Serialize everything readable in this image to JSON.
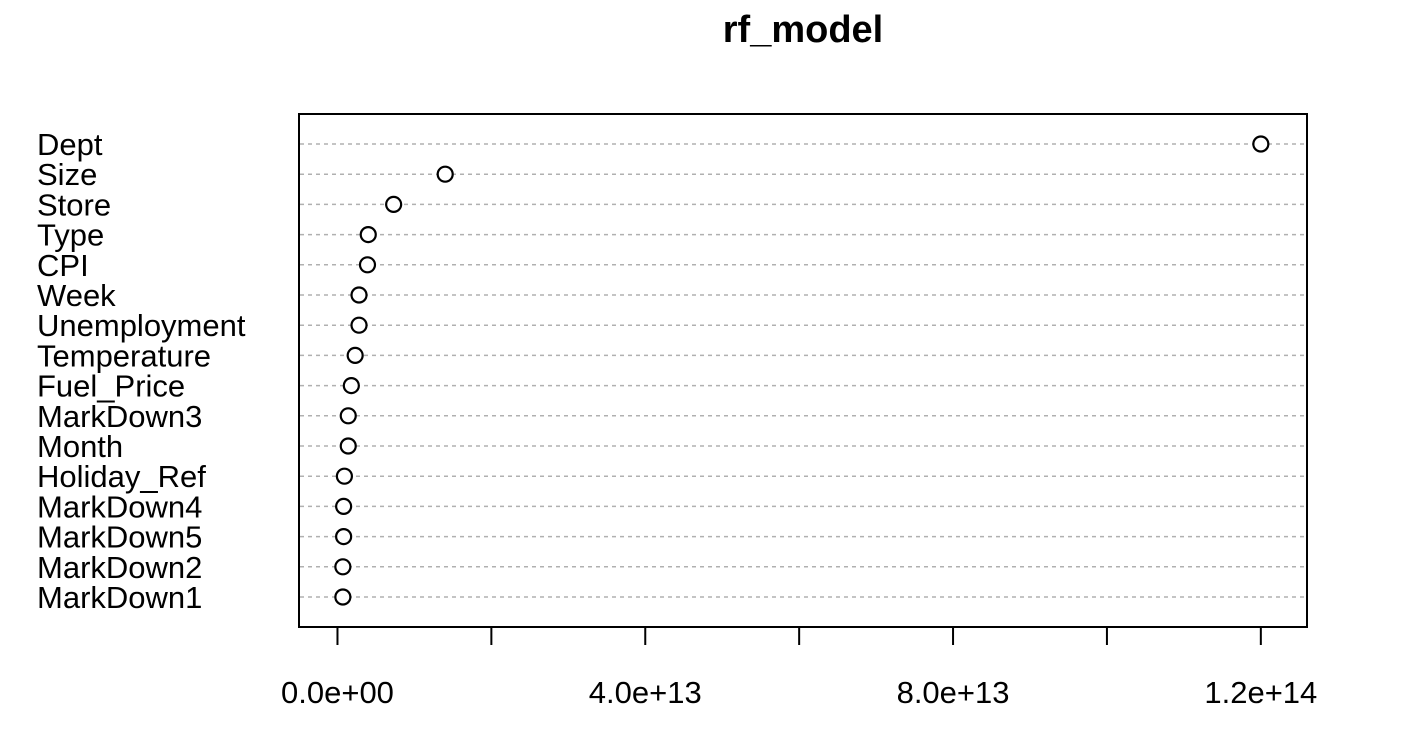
{
  "chart_data": {
    "type": "scatter",
    "title": "rf_model",
    "xlabel": "",
    "ylabel": "",
    "xlim": [
      -5000000000000,
      126000000000000
    ],
    "x_ticks": [
      0,
      20000000000000,
      40000000000000,
      60000000000000,
      80000000000000,
      100000000000000,
      120000000000000
    ],
    "x_tick_labels": [
      "0.0e+00",
      "",
      "4.0e+13",
      "",
      "8.0e+13",
      "",
      "1.2e+14"
    ],
    "grid": "horizontal dashed",
    "marker": "open-circle",
    "categories": [
      "Dept",
      "Size",
      "Store",
      "Type",
      "CPI",
      "Week",
      "Unemployment",
      "Temperature",
      "Fuel_Price",
      "MarkDown3",
      "Month",
      "Holiday_Ref",
      "MarkDown4",
      "MarkDown5",
      "MarkDown2",
      "MarkDown1"
    ],
    "values": [
      120000000000000,
      14000000000000,
      7300000000000,
      4000000000000,
      3900000000000,
      2800000000000,
      2800000000000,
      2300000000000,
      1800000000000,
      1400000000000,
      1400000000000,
      900000000000,
      800000000000,
      800000000000,
      700000000000,
      700000000000
    ]
  }
}
